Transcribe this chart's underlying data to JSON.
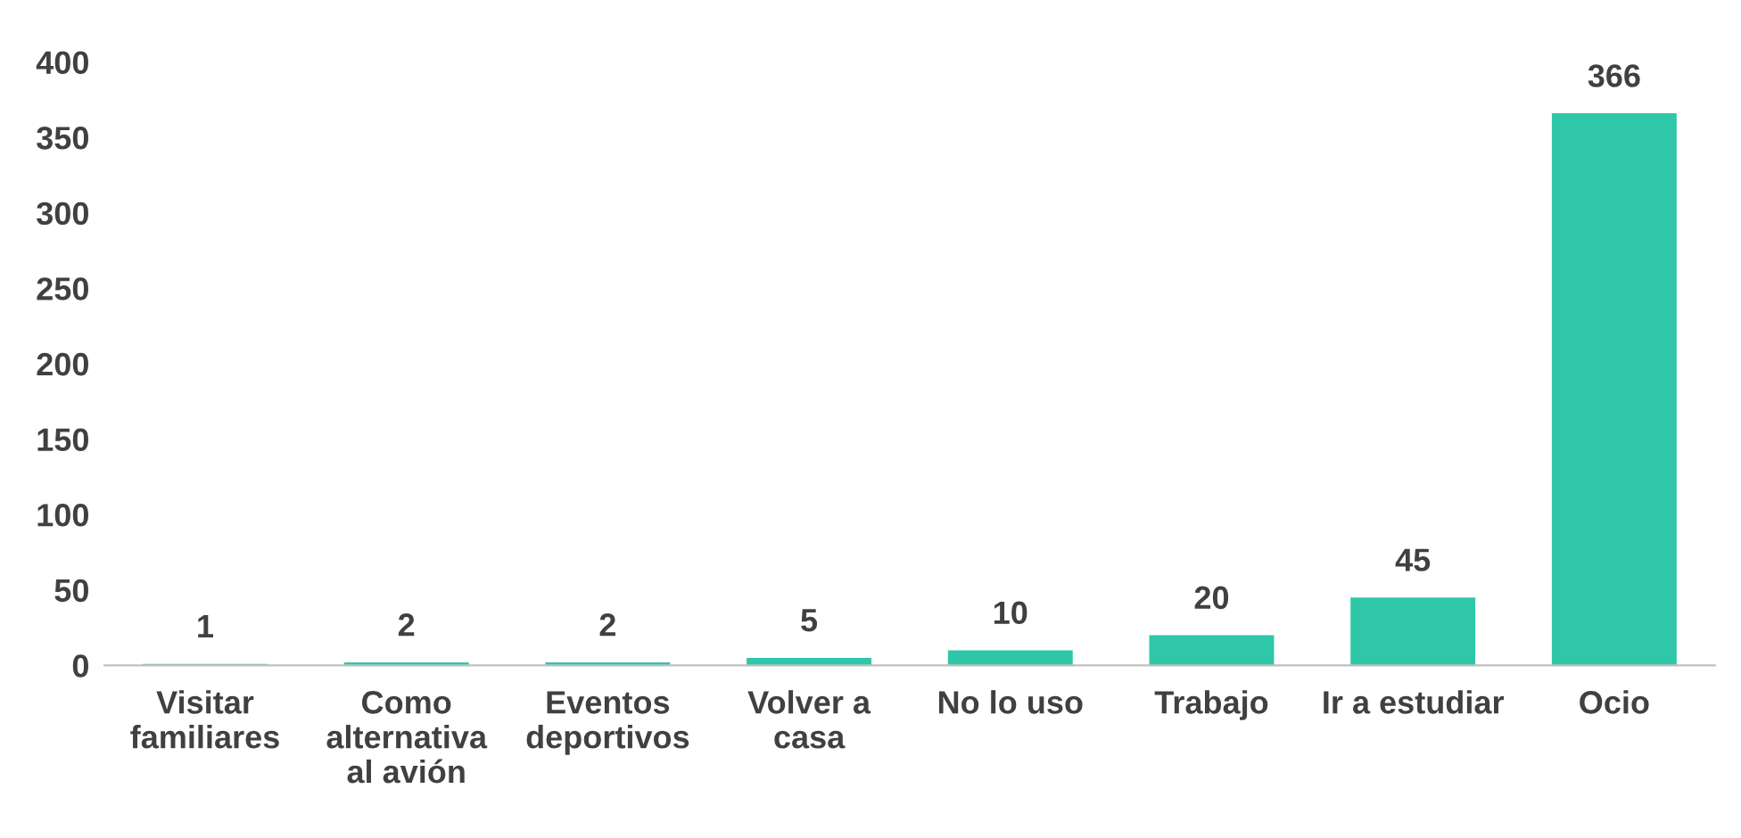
{
  "chart_data": {
    "type": "bar",
    "categories": [
      "Visitar\nfamiliares",
      "Como\nalternativa\nal avión",
      "Eventos\ndeportivos",
      "Volver a\ncasa",
      "No lo uso",
      "Trabajo",
      "Ir a estudiar",
      "Ocio"
    ],
    "values": [
      1,
      2,
      2,
      5,
      10,
      20,
      45,
      366
    ],
    "color": "#2ec7a8",
    "ylim": [
      0,
      400
    ],
    "yticks": [
      0,
      50,
      100,
      150,
      200,
      250,
      300,
      350,
      400
    ],
    "data_labels": true,
    "grid": false
  }
}
